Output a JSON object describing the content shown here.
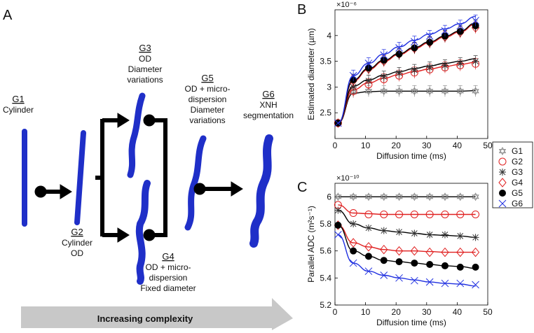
{
  "panels": {
    "a": "A",
    "b": "B",
    "c": "C"
  },
  "groups": [
    {
      "code": "G1",
      "lines": [
        "Cylinder"
      ]
    },
    {
      "code": "G2",
      "lines": [
        "Cylinder",
        "OD"
      ]
    },
    {
      "code": "G3",
      "lines": [
        "OD",
        "Diameter",
        "variations"
      ]
    },
    {
      "code": "G4",
      "lines": [
        "OD + micro-",
        "dispersion",
        "Fixed diameter"
      ]
    },
    {
      "code": "G5",
      "lines": [
        "OD + micro-",
        "dispersion",
        "Diameter",
        "variations"
      ]
    },
    {
      "code": "G6",
      "lines": [
        "XNH",
        "segmentation"
      ]
    }
  ],
  "complexity_label": "Increasing complexity",
  "colors": {
    "axon": "#1f2fc8",
    "arrow_bg": "#c8c8c8"
  },
  "legend": [
    {
      "label": "G1",
      "color": "#8c8c8c",
      "marker": "hexagram"
    },
    {
      "label": "G2",
      "color": "#e02020",
      "marker": "circle"
    },
    {
      "label": "G3",
      "color": "#333333",
      "marker": "asterisk"
    },
    {
      "label": "G4",
      "color": "#e02020",
      "marker": "diamond"
    },
    {
      "label": "G5",
      "color": "#000000",
      "marker": "filled-circle"
    },
    {
      "label": "G6",
      "color": "#2030e0",
      "marker": "x"
    }
  ],
  "chart_data": [
    {
      "type": "line",
      "panel": "B",
      "xlabel": "Diffusion time (ms)",
      "ylabel": "Estimated diameter (µm)",
      "exponent": "×10⁻⁶",
      "xlim": [
        0,
        50
      ],
      "ylim": [
        2,
        4.5
      ],
      "xticks": [
        0,
        10,
        20,
        30,
        40,
        50
      ],
      "yticks": [
        2.5,
        3,
        3.5,
        4
      ],
      "x": [
        1,
        6,
        11,
        16,
        21,
        26,
        31,
        36,
        41,
        46
      ],
      "series": [
        {
          "name": "G1",
          "values": [
            2.3,
            2.9,
            2.92,
            2.92,
            2.92,
            2.92,
            2.92,
            2.92,
            2.92,
            2.92
          ],
          "fit": [
            2.3,
            2.88,
            2.91,
            2.92,
            2.92,
            2.92,
            2.92,
            2.92,
            2.92,
            2.93
          ]
        },
        {
          "name": "G2",
          "values": [
            2.3,
            2.92,
            3.05,
            3.15,
            3.22,
            3.28,
            3.34,
            3.38,
            3.42,
            3.45
          ],
          "fit": [
            2.3,
            2.95,
            3.08,
            3.17,
            3.24,
            3.3,
            3.35,
            3.4,
            3.44,
            3.48
          ]
        },
        {
          "name": "G3",
          "values": [
            2.3,
            3.0,
            3.12,
            3.2,
            3.27,
            3.33,
            3.38,
            3.42,
            3.46,
            3.5
          ],
          "fit": [
            2.3,
            3.02,
            3.14,
            3.23,
            3.3,
            3.36,
            3.41,
            3.46,
            3.5,
            3.55
          ]
        },
        {
          "name": "G4",
          "values": [
            2.3,
            3.12,
            3.35,
            3.5,
            3.64,
            3.75,
            3.86,
            3.97,
            4.06,
            4.15
          ],
          "fit": [
            2.3,
            3.12,
            3.34,
            3.5,
            3.63,
            3.75,
            3.86,
            3.97,
            4.07,
            4.22
          ]
        },
        {
          "name": "G5",
          "values": [
            2.3,
            3.14,
            3.37,
            3.52,
            3.64,
            3.76,
            3.87,
            3.99,
            4.08,
            4.19
          ],
          "fit": [
            2.3,
            3.14,
            3.36,
            3.52,
            3.65,
            3.77,
            3.88,
            3.99,
            4.09,
            4.24
          ]
        },
        {
          "name": "G6",
          "values": [
            2.3,
            3.22,
            3.46,
            3.62,
            3.76,
            3.88,
            3.99,
            4.09,
            4.19,
            4.29
          ],
          "fit": [
            2.3,
            3.22,
            3.46,
            3.64,
            3.78,
            3.91,
            4.03,
            4.13,
            4.23,
            4.37
          ]
        }
      ]
    },
    {
      "type": "line",
      "panel": "C",
      "xlabel": "Diffusion time (ms)",
      "ylabel": "Parallel ADC (m²s⁻¹)",
      "exponent": "×10⁻¹⁰",
      "xlim": [
        0,
        50
      ],
      "ylim": [
        5.2,
        6.1
      ],
      "xticks": [
        0,
        10,
        20,
        30,
        40,
        50
      ],
      "yticks": [
        5.2,
        5.4,
        5.6,
        5.8,
        6.0
      ],
      "x": [
        1,
        6,
        11,
        16,
        21,
        26,
        31,
        36,
        41,
        46
      ],
      "series": [
        {
          "name": "G1",
          "values": [
            6.0,
            6.0,
            6.0,
            6.0,
            6.0,
            6.0,
            6.0,
            6.0,
            6.0,
            6.0
          ],
          "fit": [
            6.0,
            6.0,
            6.0,
            6.0,
            6.0,
            6.0,
            6.0,
            6.0,
            6.0,
            6.0
          ]
        },
        {
          "name": "G2",
          "values": [
            5.94,
            5.88,
            5.87,
            5.87,
            5.87,
            5.87,
            5.87,
            5.87,
            5.87,
            5.87
          ],
          "fit": [
            5.94,
            5.88,
            5.875,
            5.87,
            5.87,
            5.87,
            5.87,
            5.87,
            5.87,
            5.87
          ]
        },
        {
          "name": "G3",
          "values": [
            5.9,
            5.8,
            5.77,
            5.75,
            5.74,
            5.73,
            5.72,
            5.72,
            5.71,
            5.7
          ],
          "fit": [
            5.9,
            5.8,
            5.77,
            5.75,
            5.74,
            5.73,
            5.72,
            5.715,
            5.71,
            5.7
          ]
        },
        {
          "name": "G4",
          "values": [
            5.79,
            5.66,
            5.63,
            5.61,
            5.6,
            5.6,
            5.59,
            5.59,
            5.59,
            5.59
          ],
          "fit": [
            5.79,
            5.66,
            5.63,
            5.61,
            5.6,
            5.6,
            5.595,
            5.59,
            5.59,
            5.59
          ]
        },
        {
          "name": "G5",
          "values": [
            5.79,
            5.6,
            5.56,
            5.53,
            5.52,
            5.51,
            5.5,
            5.49,
            5.48,
            5.48
          ],
          "fit": [
            5.79,
            5.6,
            5.56,
            5.53,
            5.52,
            5.51,
            5.5,
            5.49,
            5.485,
            5.47
          ]
        },
        {
          "name": "G6",
          "values": [
            5.72,
            5.51,
            5.45,
            5.42,
            5.4,
            5.38,
            5.37,
            5.36,
            5.36,
            5.35
          ],
          "fit": [
            5.72,
            5.51,
            5.45,
            5.42,
            5.4,
            5.385,
            5.37,
            5.36,
            5.355,
            5.34
          ]
        }
      ]
    }
  ]
}
